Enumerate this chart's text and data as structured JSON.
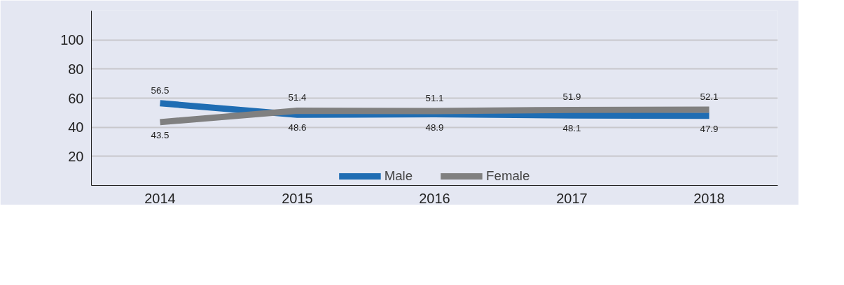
{
  "chart_data": {
    "type": "line",
    "categories": [
      "2014",
      "2015",
      "2016",
      "2017",
      "2018"
    ],
    "series": [
      {
        "name": "Male",
        "color": "#1f6db3",
        "values": [
          56.5,
          48.6,
          48.9,
          48.1,
          47.9
        ]
      },
      {
        "name": "Female",
        "color": "#808080",
        "values": [
          43.5,
          51.4,
          51.1,
          51.9,
          52.1
        ]
      }
    ],
    "ylim": [
      0,
      120
    ],
    "yticks": [
      20,
      40,
      60,
      80,
      100
    ],
    "grid": "y",
    "legend": "bottom",
    "data_labels": true,
    "marker": "none",
    "line_style": "solid"
  }
}
